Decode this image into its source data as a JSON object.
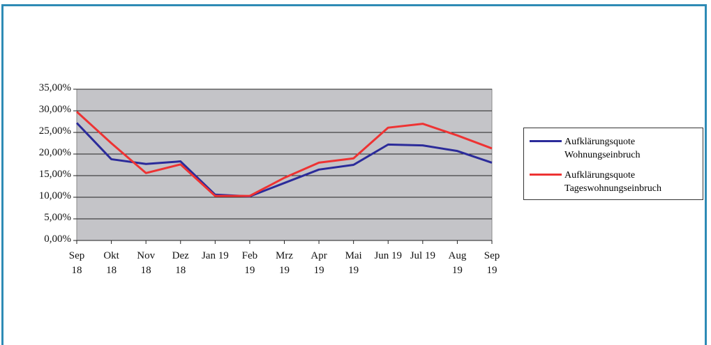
{
  "chart_data": {
    "type": "line",
    "categories": [
      "Sep 18",
      "Okt 18",
      "Nov 18",
      "Dez 18",
      "Jan 19",
      "Feb 19",
      "Mrz 19",
      "Apr 19",
      "Mai 19",
      "Jun 19",
      "Jul 19",
      "Aug 19",
      "Sep 19"
    ],
    "series": [
      {
        "name": "Aufklärungsquote Wohnungseinbruch",
        "color": "#2b2b9a",
        "values": [
          27.2,
          18.8,
          17.7,
          18.3,
          10.6,
          10.2,
          13.3,
          16.4,
          17.5,
          22.2,
          22.0,
          20.7,
          18.0
        ]
      },
      {
        "name": "Aufklärungsquote Tageswohnungseinbruch",
        "color": "#ee3333",
        "values": [
          29.8,
          22.5,
          15.6,
          17.6,
          10.3,
          10.3,
          14.5,
          18.0,
          19.0,
          26.1,
          27.0,
          24.3,
          21.3
        ]
      }
    ],
    "ylim": [
      0,
      35
    ],
    "yticks": [
      {
        "value": 0,
        "label": "0,00%"
      },
      {
        "value": 5,
        "label": "5,00%"
      },
      {
        "value": 10,
        "label": "10,00%"
      },
      {
        "value": 15,
        "label": "15,00%"
      },
      {
        "value": 20,
        "label": "20,00%"
      },
      {
        "value": 25,
        "label": "25,00%"
      },
      {
        "value": 30,
        "label": "30,00%"
      },
      {
        "value": 35,
        "label": "35,00%"
      }
    ],
    "grid": true,
    "legend": "right"
  }
}
